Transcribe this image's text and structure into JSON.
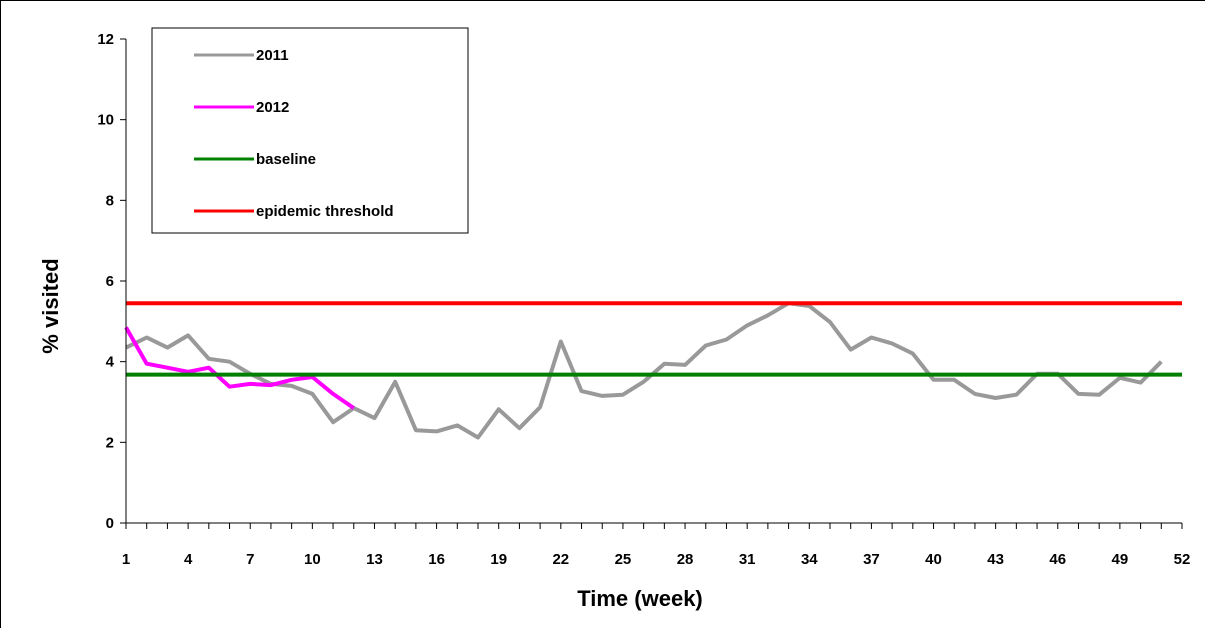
{
  "chart_data": {
    "type": "line",
    "title": "",
    "xlabel": "Time (week)",
    "ylabel": "% visited",
    "xlim": [
      1,
      52
    ],
    "ylim": [
      0,
      12
    ],
    "x_ticks": [
      1,
      4,
      7,
      10,
      13,
      16,
      19,
      22,
      25,
      28,
      31,
      34,
      37,
      40,
      43,
      46,
      49,
      52
    ],
    "y_ticks": [
      0,
      2,
      4,
      6,
      8,
      10,
      12
    ],
    "grid": false,
    "legend_position": "top-left",
    "series": [
      {
        "name": "2011",
        "color": "#999999",
        "x": [
          1,
          2,
          3,
          4,
          5,
          6,
          7,
          8,
          9,
          10,
          11,
          12,
          13,
          14,
          15,
          16,
          17,
          18,
          19,
          20,
          21,
          22,
          23,
          24,
          25,
          26,
          27,
          28,
          29,
          30,
          31,
          32,
          33,
          34,
          35,
          36,
          37,
          38,
          39,
          40,
          41,
          42,
          43,
          44,
          45,
          46,
          47,
          48,
          49,
          50,
          51
        ],
        "values": [
          4.35,
          4.6,
          4.35,
          4.65,
          4.07,
          4.0,
          3.7,
          3.45,
          3.4,
          3.2,
          2.5,
          2.85,
          2.6,
          3.5,
          2.3,
          2.27,
          2.42,
          2.12,
          2.82,
          2.35,
          2.87,
          4.5,
          3.27,
          3.15,
          3.18,
          3.5,
          3.95,
          3.92,
          4.4,
          4.55,
          4.9,
          5.15,
          5.45,
          5.38,
          4.98,
          4.3,
          4.6,
          4.45,
          4.2,
          3.55,
          3.55,
          3.2,
          3.1,
          3.18,
          3.7,
          3.7,
          3.2,
          3.18,
          3.6,
          3.48,
          4.0
        ]
      },
      {
        "name": "2012",
        "color": "#ff00ff",
        "x": [
          1,
          2,
          3,
          4,
          5,
          6,
          7,
          8,
          9,
          10,
          11,
          12
        ],
        "values": [
          4.85,
          3.95,
          3.85,
          3.75,
          3.85,
          3.38,
          3.45,
          3.42,
          3.55,
          3.62,
          3.2,
          2.85
        ]
      },
      {
        "name": "baseline",
        "color": "#008000",
        "x": [
          1,
          52
        ],
        "values": [
          3.68,
          3.68
        ]
      },
      {
        "name": "epidemic threshold",
        "color": "#ff0000",
        "x": [
          1,
          52
        ],
        "values": [
          5.45,
          5.45
        ]
      }
    ]
  }
}
